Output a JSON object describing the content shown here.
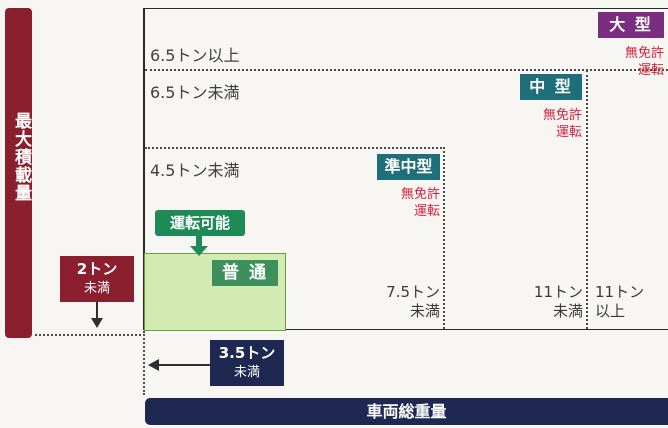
{
  "axes": {
    "y_label": "最大積載量",
    "x_label": "車両総重量"
  },
  "rows": {
    "r1": "6.5トン以上",
    "r2": "6.5トン未満",
    "r3": "4.5トン未満"
  },
  "classes": {
    "ogata": {
      "name": "大 型",
      "note1": "無免許",
      "note2": "運転"
    },
    "chugata": {
      "name": "中 型",
      "note1": "無免許",
      "note2": "運転"
    },
    "junchugata": {
      "name": "準中型",
      "note1": "無免許",
      "note2": "運転"
    },
    "futsu": {
      "name": "普 通"
    }
  },
  "callout": {
    "label": "運転可能"
  },
  "weights": {
    "w1_top": "7.5トン",
    "w1_bottom": "未満",
    "w2_top": "11トン",
    "w2_bottom": "未満",
    "w3_top": "11トン",
    "w3_bottom": "以上"
  },
  "limits": {
    "payload": {
      "top": "2トン",
      "bottom": "未満"
    },
    "gross": {
      "top": "3.5トン",
      "bottom": "未満"
    }
  },
  "colors": {
    "maroon": "#8c1f2e",
    "navy": "#1e2850",
    "teal": "#1f6f7a",
    "purple": "#7a2e80",
    "green": "#1e8a57",
    "red_text": "#d6203c",
    "light_green": "#d2ebb3"
  }
}
